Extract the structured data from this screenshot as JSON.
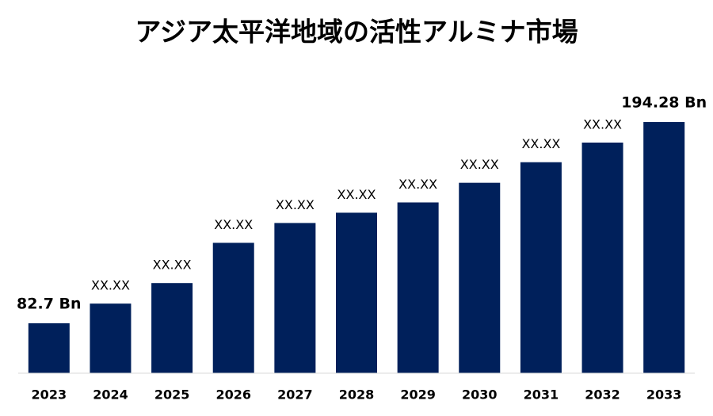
{
  "chart_data": {
    "type": "bar",
    "title": "アジア太平洋地域の活性アルミナ市場",
    "categories": [
      "2023",
      "2024",
      "2025",
      "2026",
      "2027",
      "2028",
      "2029",
      "2030",
      "2031",
      "2032",
      "2033"
    ],
    "values": [
      82.7,
      93.6,
      105.0,
      127.3,
      138.3,
      144.0,
      149.7,
      160.6,
      172.0,
      182.9,
      194.28
    ],
    "value_labels": [
      "82.7 Bn",
      "XX.XX",
      "XX.XX",
      "XX.XX",
      "XX.XX",
      "XX.XX",
      "XX.XX",
      "XX.XX",
      "XX.XX",
      "XX.XX",
      "194.28 Bn"
    ],
    "color": "#00205b",
    "ylim": [
      55,
      200
    ]
  }
}
